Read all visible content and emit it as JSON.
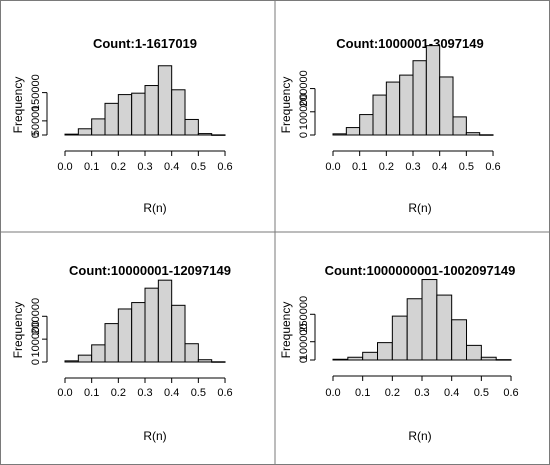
{
  "chart_data": [
    {
      "type": "bar",
      "title": "Count:1-1617019",
      "xlabel": "R(n)",
      "ylabel": "Frequency",
      "xlim": [
        0.0,
        0.65
      ],
      "ylim": [
        0,
        230000
      ],
      "x_ticks": [
        "0.0",
        "0.1",
        "0.2",
        "0.3",
        "0.4",
        "0.5",
        "0.6"
      ],
      "y_ticks": [
        {
          "value": 0,
          "label": "0"
        },
        {
          "value": 50000,
          "label": "50000"
        },
        {
          "value": 150000,
          "label": "150000"
        }
      ],
      "bin_width": 0.05,
      "bins_start": [
        0.0,
        0.05,
        0.1,
        0.15,
        0.2,
        0.25,
        0.3,
        0.35,
        0.4,
        0.45,
        0.5,
        0.55
      ],
      "values": [
        3000,
        22000,
        57000,
        112000,
        143000,
        148000,
        175000,
        245000,
        160000,
        55000,
        5000,
        500
      ]
    },
    {
      "type": "bar",
      "title": "Count:1000001-3097149",
      "xlabel": "R(n)",
      "ylabel": "Frequency",
      "xlim": [
        0.0,
        0.65
      ],
      "ylim": [
        0,
        280000
      ],
      "x_ticks": [
        "0.0",
        "0.1",
        "0.2",
        "0.3",
        "0.4",
        "0.5",
        "0.6"
      ],
      "y_ticks": [
        {
          "value": 0,
          "label": "0"
        },
        {
          "value": 100000,
          "label": "100000"
        },
        {
          "value": 200000,
          "label": "200000"
        }
      ],
      "bin_width": 0.05,
      "bins_start": [
        0.0,
        0.05,
        0.1,
        0.15,
        0.2,
        0.25,
        0.3,
        0.35,
        0.4,
        0.45,
        0.5,
        0.55
      ],
      "values": [
        5000,
        32000,
        88000,
        172000,
        228000,
        258000,
        320000,
        385000,
        250000,
        78000,
        10000,
        1000
      ]
    },
    {
      "type": "bar",
      "title": "Count:10000001-12097149",
      "xlabel": "R(n)",
      "ylabel": "Frequency",
      "xlim": [
        0.0,
        0.65
      ],
      "ylim": [
        0,
        280000
      ],
      "x_ticks": [
        "0.0",
        "0.1",
        "0.2",
        "0.3",
        "0.4",
        "0.5",
        "0.6"
      ],
      "y_ticks": [
        {
          "value": 0,
          "label": "0"
        },
        {
          "value": 100000,
          "label": "100000"
        },
        {
          "value": 200000,
          "label": "200000"
        }
      ],
      "bin_width": 0.05,
      "bins_start": [
        0.0,
        0.05,
        0.1,
        0.15,
        0.2,
        0.25,
        0.3,
        0.35,
        0.4,
        0.45,
        0.5,
        0.55
      ],
      "values": [
        5000,
        30000,
        75000,
        168000,
        232000,
        260000,
        323000,
        358000,
        248000,
        80000,
        10000,
        1000
      ]
    },
    {
      "type": "bar",
      "title": "Count:1000000001-1002097149",
      "xlabel": "R(n)",
      "ylabel": "Frequency",
      "xlim": [
        0.0,
        0.6
      ],
      "ylim": [
        0,
        350000
      ],
      "x_ticks": [
        "0.0",
        "0.1",
        "0.2",
        "0.3",
        "0.4",
        "0.5",
        "0.6"
      ],
      "y_ticks": [
        {
          "value": 0,
          "label": "0"
        },
        {
          "value": 100000,
          "label": "100000"
        },
        {
          "value": 250000,
          "label": "250000"
        }
      ],
      "bin_width": 0.05,
      "bins_start": [
        0.0,
        0.05,
        0.1,
        0.15,
        0.2,
        0.25,
        0.3,
        0.35,
        0.4,
        0.45,
        0.5,
        0.55
      ],
      "values": [
        4000,
        15000,
        42000,
        95000,
        240000,
        335000,
        440000,
        355000,
        220000,
        80000,
        15000,
        2000
      ]
    }
  ]
}
